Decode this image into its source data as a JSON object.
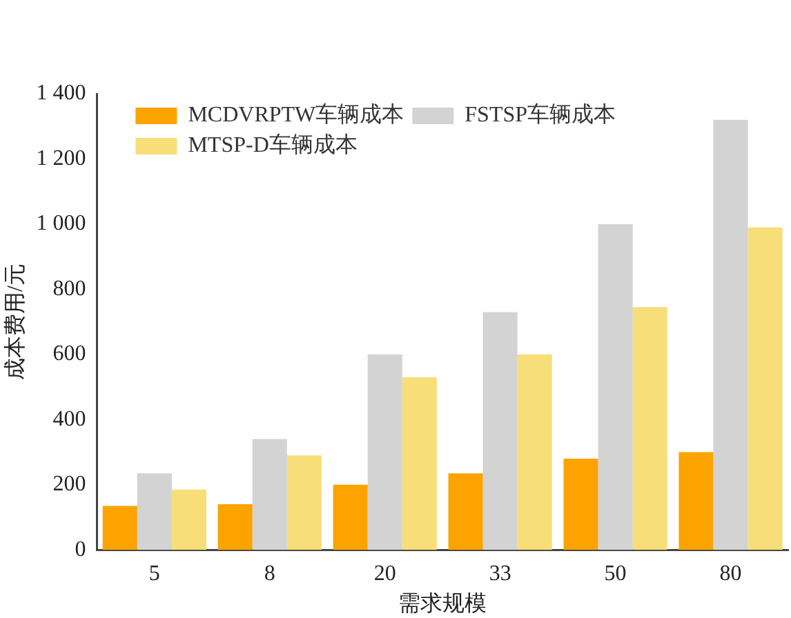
{
  "chart_data": {
    "type": "bar",
    "xlabel": "需求规模",
    "ylabel": "成本费用/元",
    "categories": [
      "5",
      "8",
      "20",
      "33",
      "50",
      "80"
    ],
    "series": [
      {
        "name": "MCDVRPTW车辆成本",
        "color": "#fca300",
        "values": [
          135,
          140,
          200,
          235,
          280,
          300
        ]
      },
      {
        "name": "FSTSP车辆成本",
        "color": "#d3d3d3",
        "values": [
          235,
          340,
          600,
          730,
          1000,
          1320
        ]
      },
      {
        "name": "MTSP-D车辆成本",
        "color": "#f7de78",
        "values": [
          185,
          290,
          530,
          600,
          745,
          990
        ]
      }
    ],
    "ylim": [
      0,
      1400
    ],
    "yticks": [
      0,
      200,
      400,
      600,
      800,
      {
        "value": 1000,
        "label": "1 000"
      },
      {
        "value": 1200,
        "label": "1 200"
      },
      {
        "value": 1400,
        "label": "1 400"
      }
    ],
    "grid": false,
    "legend": "top left"
  }
}
